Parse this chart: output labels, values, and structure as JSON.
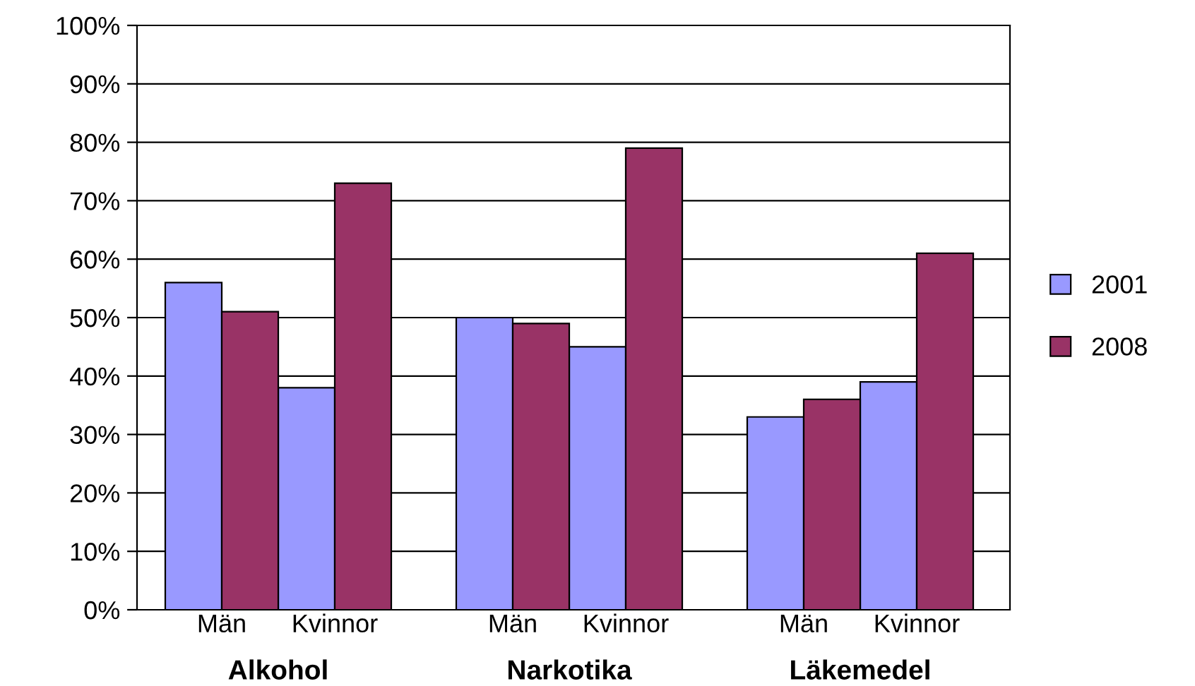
{
  "chart_data": {
    "type": "bar",
    "categories": [
      "Män",
      "Kvinnor",
      "Män",
      "Kvinnor",
      "Män",
      "Kvinnor"
    ],
    "series": [
      {
        "name": "2001",
        "color": "#9999ff",
        "values": [
          56,
          38,
          50,
          45,
          33,
          39
        ]
      },
      {
        "name": "2008",
        "color": "#993366",
        "values": [
          51,
          73,
          49,
          79,
          36,
          61
        ]
      }
    ],
    "annotations": [
      "Alkohol",
      "Narkotika",
      "Läkemedel"
    ],
    "ylim": [
      0,
      100
    ],
    "yticks": [
      {
        "value": 0,
        "label": "0%"
      },
      {
        "value": 10,
        "label": "10%"
      },
      {
        "value": 20,
        "label": "20%"
      },
      {
        "value": 30,
        "label": "30%"
      },
      {
        "value": 40,
        "label": "40%"
      },
      {
        "value": 50,
        "label": "50%"
      },
      {
        "value": 60,
        "label": "60%"
      },
      {
        "value": 70,
        "label": "70%"
      },
      {
        "value": 80,
        "label": "80%"
      },
      {
        "value": 90,
        "label": "90%"
      },
      {
        "value": 100,
        "label": "100%"
      }
    ],
    "grid": "y",
    "legend": "right"
  }
}
